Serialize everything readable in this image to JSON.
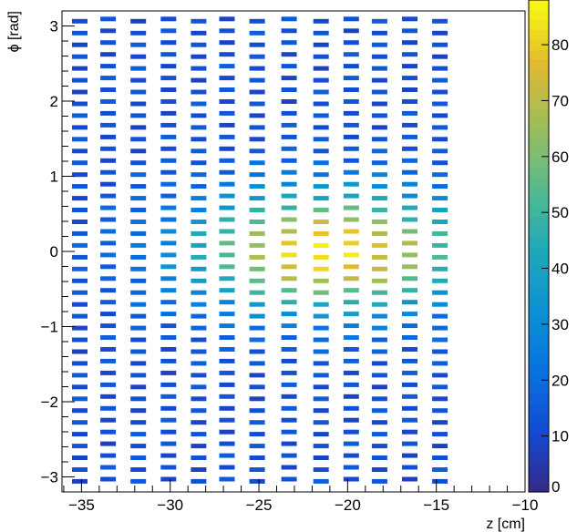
{
  "chart_data": {
    "type": "heatmap",
    "title": "",
    "xlabel": "z [cm]",
    "ylabel": "ϕ [rad]",
    "xlim": [
      -36.1,
      -10
    ],
    "ylim": [
      -3.2,
      3.2
    ],
    "zlim": [
      0,
      88
    ],
    "x_ticks": [
      -35,
      -30,
      -25,
      -20,
      -15,
      -10
    ],
    "x_tick_labels": [
      "−35",
      "−30",
      "−25",
      "−20",
      "−15",
      "−10"
    ],
    "y_ticks": [
      -3,
      -2,
      -1,
      0,
      1,
      2,
      3
    ],
    "y_tick_labels": [
      "−3",
      "−2",
      "−1",
      "0",
      "1",
      "2",
      "3"
    ],
    "colorbar_ticks": [
      0,
      10,
      20,
      30,
      40,
      50,
      60,
      70,
      80
    ],
    "colorbar_tick_labels": [
      "0",
      "10",
      "20",
      "30",
      "40",
      "50",
      "60",
      "70",
      "80"
    ],
    "columns_z": [
      -35.1,
      -33.5,
      -31.8,
      -30.1,
      -28.4,
      -26.8,
      -25.1,
      -23.3,
      -21.5,
      -19.8,
      -18.2,
      -16.5,
      -14.8
    ],
    "rows_per_column": 40,
    "bin_phi_step": 0.157,
    "cluster_center": {
      "z": -21.0,
      "phi": 0.0
    },
    "peak_value": 86
  }
}
